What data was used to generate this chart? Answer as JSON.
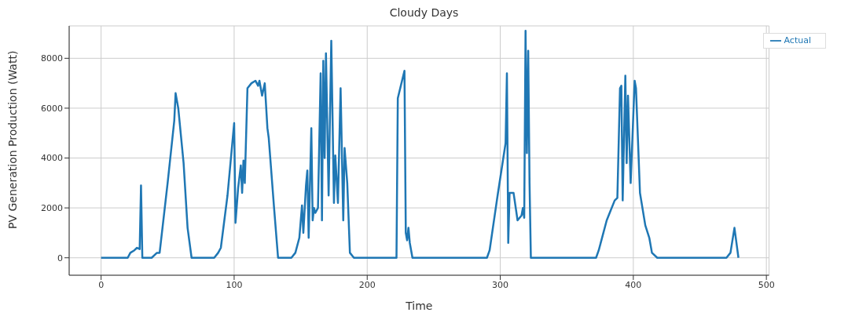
{
  "chart_data": {
    "type": "line",
    "title": "Cloudy Days",
    "xlabel": "Time",
    "ylabel": "PV Generation Production (Watt)",
    "xlim": [
      -24,
      502
    ],
    "ylim": [
      -700,
      9300
    ],
    "xticks": [
      0,
      100,
      200,
      300,
      400,
      500
    ],
    "yticks": [
      0,
      2000,
      4000,
      6000,
      8000
    ],
    "grid": true,
    "legend": "top right",
    "marker": "none",
    "line_style": "solid",
    "series": [
      {
        "name": "Actual",
        "color": "#1f77b4",
        "x": [
          0,
          20,
          22,
          25,
          27,
          29,
          30,
          31,
          38,
          42,
          44,
          50,
          55,
          56,
          58,
          62,
          65,
          68,
          85,
          88,
          90,
          95,
          100,
          101,
          103,
          105,
          106,
          107,
          108,
          110,
          113,
          116,
          118,
          119,
          121,
          123,
          125,
          126,
          130,
          133,
          143,
          146,
          149,
          151,
          152,
          154,
          155,
          156,
          158,
          159,
          160,
          161,
          163,
          165,
          166,
          167,
          168,
          169,
          171,
          173,
          175,
          176,
          178,
          180,
          182,
          183,
          185,
          187,
          190,
          222,
          223,
          228,
          229,
          230,
          231,
          232,
          234,
          290,
          292,
          298,
          304,
          305,
          306,
          307,
          310,
          313,
          316,
          317,
          318,
          319,
          320,
          321,
          322,
          323,
          372,
          374,
          377,
          380,
          383,
          386,
          388,
          390,
          391,
          392,
          394,
          395,
          396,
          398,
          401,
          402,
          405,
          409,
          412,
          414,
          418,
          470,
          473,
          476,
          479
        ],
        "values": [
          0,
          0,
          200,
          300,
          400,
          350,
          2900,
          0,
          0,
          200,
          200,
          3000,
          5500,
          6600,
          6000,
          3800,
          1200,
          0,
          0,
          200,
          400,
          2500,
          5400,
          1400,
          2800,
          3700,
          2600,
          3900,
          3000,
          6800,
          7000,
          7100,
          6900,
          7100,
          6500,
          7000,
          5200,
          4800,
          2000,
          0,
          0,
          200,
          800,
          2100,
          1000,
          2900,
          3500,
          800,
          5200,
          1500,
          2000,
          1800,
          2000,
          7400,
          1500,
          7900,
          4000,
          8200,
          2500,
          8700,
          2200,
          4100,
          2200,
          6800,
          1500,
          4400,
          3000,
          200,
          0,
          0,
          6400,
          7500,
          1000,
          700,
          1200,
          600,
          0,
          0,
          300,
          2500,
          4600,
          7400,
          600,
          2600,
          2600,
          1500,
          1700,
          2000,
          1600,
          9100,
          4200,
          8300,
          3000,
          0,
          0,
          300,
          900,
          1500,
          1900,
          2300,
          2400,
          6800,
          6900,
          2300,
          7300,
          3800,
          6500,
          3000,
          7100,
          6800,
          2600,
          1300,
          800,
          200,
          0,
          0,
          200,
          1200,
          0
        ]
      }
    ]
  }
}
